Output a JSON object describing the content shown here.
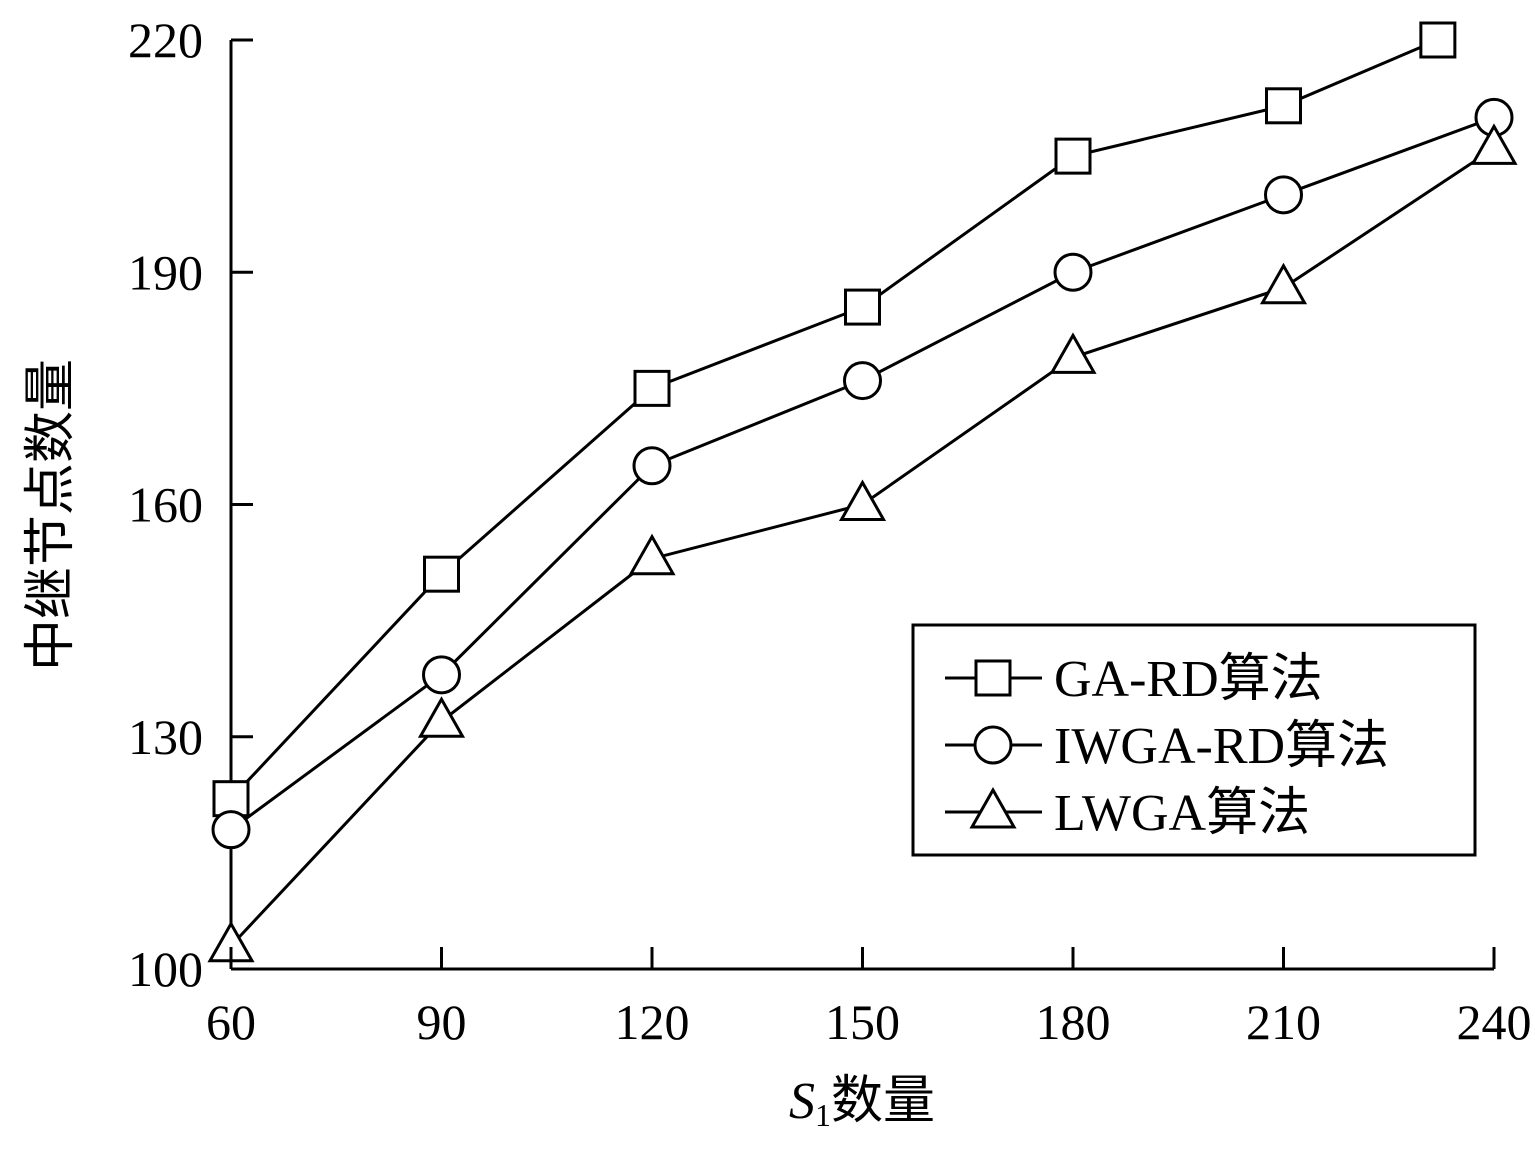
{
  "chart_data": {
    "type": "line",
    "x": [
      60,
      90,
      120,
      150,
      180,
      210,
      240
    ],
    "xticks": [
      "60",
      "90",
      "120",
      "150",
      "180",
      "210",
      "240"
    ],
    "yticks": [
      "100",
      "130",
      "160",
      "190",
      "220"
    ],
    "xlim": [
      60,
      240
    ],
    "ylim": [
      100,
      220
    ],
    "xlabel_main": "S",
    "xlabel_sub": "1",
    "xlabel_suffix": "数量",
    "ylabel": "中继节点数量",
    "grid": false,
    "legend_position": "lower-right",
    "series": [
      {
        "name": "GA-RD算法",
        "marker": "square",
        "points": [
          [
            60,
            122
          ],
          [
            90,
            151
          ],
          [
            120,
            175
          ],
          [
            150,
            185.5
          ],
          [
            180,
            205
          ],
          [
            210,
            211.5
          ],
          [
            232,
            220
          ]
        ]
      },
      {
        "name": "IWGA-RD算法",
        "marker": "circle",
        "points": [
          [
            60,
            118
          ],
          [
            90,
            138
          ],
          [
            120,
            165
          ],
          [
            150,
            176
          ],
          [
            180,
            190
          ],
          [
            210,
            200
          ],
          [
            240,
            210
          ]
        ]
      },
      {
        "name": "LWGA算法",
        "marker": "triangle",
        "points": [
          [
            60,
            103
          ],
          [
            90,
            132
          ],
          [
            120,
            153
          ],
          [
            150,
            160
          ],
          [
            180,
            179
          ],
          [
            210,
            188
          ],
          [
            240,
            206
          ]
        ]
      }
    ]
  }
}
